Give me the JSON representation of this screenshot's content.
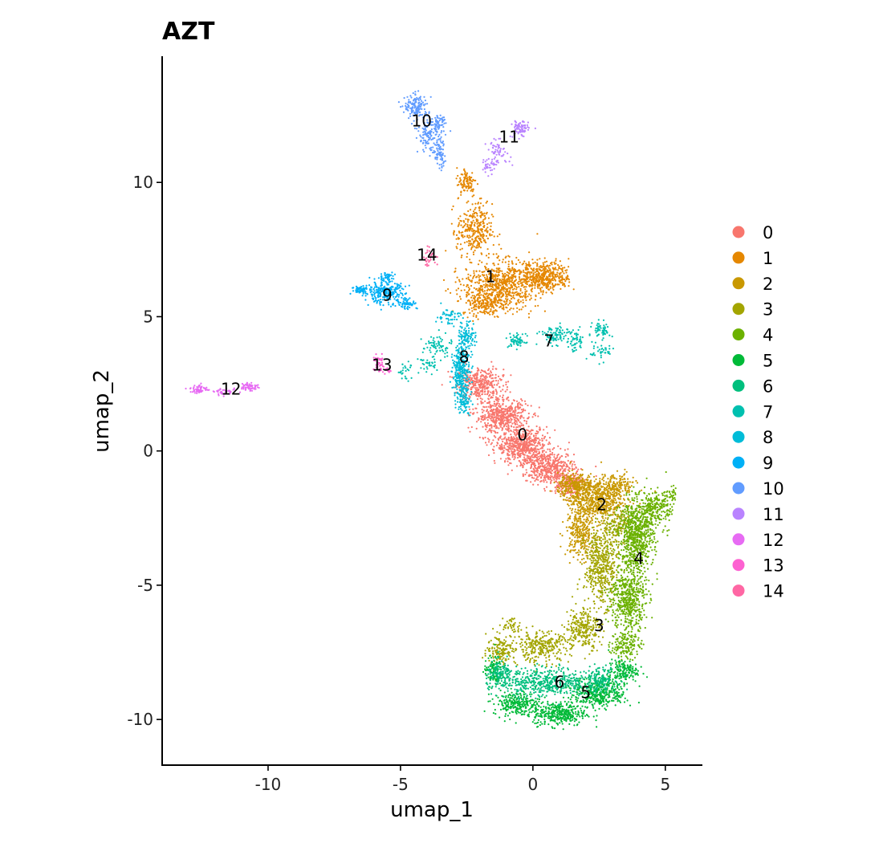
{
  "chart_data": {
    "type": "scatter",
    "title": "AZT",
    "xlabel": "umap_1",
    "ylabel": "umap_2",
    "xlim": [
      -14,
      6.4
    ],
    "ylim": [
      -11.7,
      14.7
    ],
    "x_ticks": [
      -10,
      -5,
      0,
      5
    ],
    "y_ticks": [
      -10,
      -5,
      0,
      5,
      10
    ],
    "x_tick_labels": [
      "-10",
      "-5",
      "0",
      "5"
    ],
    "y_tick_labels": [
      "-10",
      "-5",
      "0",
      "5",
      "10"
    ],
    "grid": false,
    "legend_position": "right",
    "series": [
      {
        "name": "0",
        "color": "#F8766D",
        "label_x": -0.4,
        "label_y": 0.6
      },
      {
        "name": "1",
        "color": "#E58700",
        "label_x": -1.6,
        "label_y": 6.5
      },
      {
        "name": "2",
        "color": "#C99800",
        "label_x": 2.6,
        "label_y": -2.0
      },
      {
        "name": "3",
        "color": "#A3A500",
        "label_x": 2.5,
        "label_y": -6.5
      },
      {
        "name": "4",
        "color": "#6BB100",
        "label_x": 4.0,
        "label_y": -4.0
      },
      {
        "name": "5",
        "color": "#00BA38",
        "label_x": 2.0,
        "label_y": -9.0
      },
      {
        "name": "6",
        "color": "#00BF7D",
        "label_x": 1.0,
        "label_y": -8.6
      },
      {
        "name": "7",
        "color": "#00C0AF",
        "label_x": 0.6,
        "label_y": 4.1
      },
      {
        "name": "8",
        "color": "#00BCD8",
        "label_x": -2.6,
        "label_y": 3.5
      },
      {
        "name": "9",
        "color": "#00B0F6",
        "label_x": -5.5,
        "label_y": 5.8
      },
      {
        "name": "10",
        "color": "#619CFF",
        "label_x": -4.2,
        "label_y": 12.3
      },
      {
        "name": "11",
        "color": "#B983FF",
        "label_x": -0.9,
        "label_y": 11.7
      },
      {
        "name": "12",
        "color": "#E76BF3",
        "label_x": -11.4,
        "label_y": 2.3
      },
      {
        "name": "13",
        "color": "#FD61D1",
        "label_x": -5.7,
        "label_y": 3.2
      },
      {
        "name": "14",
        "color": "#FF67A4",
        "label_x": -4.0,
        "label_y": 7.3
      }
    ],
    "clusters": [
      {
        "label": "0",
        "points": [
          [
            -2.0,
            2.5,
            0.8,
            0.5,
            350
          ],
          [
            -1.2,
            1.3,
            0.9,
            0.6,
            500
          ],
          [
            -0.4,
            0.2,
            0.9,
            0.6,
            550
          ],
          [
            0.6,
            -0.6,
            0.9,
            0.5,
            450
          ],
          [
            1.3,
            -1.2,
            0.6,
            0.4,
            180
          ]
        ]
      },
      {
        "label": "1",
        "points": [
          [
            -1.2,
            6.2,
            1.3,
            0.8,
            700
          ],
          [
            0.5,
            6.5,
            0.8,
            0.5,
            400
          ],
          [
            -2.2,
            8.2,
            0.6,
            0.9,
            300
          ],
          [
            -2.5,
            10.0,
            0.35,
            0.5,
            100
          ],
          [
            -1.8,
            5.5,
            0.8,
            0.4,
            200
          ]
        ]
      },
      {
        "label": "2",
        "points": [
          [
            2.4,
            -1.8,
            0.9,
            0.7,
            600
          ],
          [
            1.6,
            -1.3,
            0.6,
            0.4,
            250
          ],
          [
            1.8,
            -3.0,
            0.5,
            0.9,
            300
          ],
          [
            3.2,
            -1.3,
            0.6,
            0.4,
            150
          ]
        ]
      },
      {
        "label": "3",
        "points": [
          [
            2.6,
            -4.3,
            0.6,
            1.3,
            500
          ],
          [
            1.9,
            -6.6,
            0.6,
            0.7,
            250
          ],
          [
            0.3,
            -7.3,
            1.0,
            0.5,
            300
          ],
          [
            -1.2,
            -7.4,
            0.5,
            0.5,
            150
          ],
          [
            -0.8,
            -6.5,
            0.3,
            0.3,
            40
          ],
          [
            3.2,
            -2.8,
            0.5,
            0.6,
            150
          ]
        ]
      },
      {
        "label": "4",
        "points": [
          [
            3.9,
            -3.2,
            0.6,
            1.2,
            700
          ],
          [
            3.6,
            -5.5,
            0.6,
            1.1,
            500
          ],
          [
            4.5,
            -2.2,
            0.5,
            0.6,
            200
          ],
          [
            5.0,
            -2.0,
            0.25,
            0.5,
            60
          ],
          [
            5.3,
            -1.6,
            0.1,
            0.3,
            20
          ],
          [
            3.5,
            -7.2,
            0.5,
            0.5,
            150
          ]
        ]
      },
      {
        "label": "5",
        "points": [
          [
            2.5,
            -9.0,
            0.9,
            0.5,
            400
          ],
          [
            1.0,
            -9.8,
            0.9,
            0.4,
            350
          ],
          [
            -0.6,
            -9.4,
            0.8,
            0.4,
            250
          ],
          [
            3.4,
            -8.2,
            0.5,
            0.4,
            150
          ],
          [
            -1.5,
            -8.2,
            0.3,
            0.5,
            100
          ]
        ]
      },
      {
        "label": "6",
        "points": [
          [
            0.5,
            -8.6,
            1.4,
            0.5,
            450
          ],
          [
            -1.2,
            -8.4,
            0.5,
            0.5,
            150
          ],
          [
            2.5,
            -8.5,
            0.6,
            0.4,
            150
          ]
        ]
      },
      {
        "label": "7",
        "points": [
          [
            -0.6,
            4.1,
            0.3,
            0.25,
            60
          ],
          [
            0.8,
            4.3,
            0.5,
            0.3,
            100
          ],
          [
            1.6,
            4.1,
            0.3,
            0.4,
            60
          ],
          [
            2.6,
            4.5,
            0.3,
            0.3,
            60
          ],
          [
            2.6,
            3.7,
            0.4,
            0.3,
            40
          ],
          [
            -3.6,
            3.9,
            0.5,
            0.4,
            70
          ],
          [
            -4.0,
            3.2,
            0.3,
            0.3,
            35
          ],
          [
            -4.8,
            3.0,
            0.3,
            0.3,
            25
          ]
        ]
      },
      {
        "label": "8",
        "points": [
          [
            -2.7,
            2.9,
            0.3,
            0.9,
            300
          ],
          [
            -2.5,
            4.3,
            0.3,
            0.5,
            100
          ],
          [
            -2.6,
            1.8,
            0.25,
            0.4,
            60
          ],
          [
            -3.2,
            5.0,
            0.4,
            0.3,
            50
          ]
        ]
      },
      {
        "label": "9",
        "points": [
          [
            -5.6,
            5.9,
            0.7,
            0.35,
            250
          ],
          [
            -6.5,
            6.0,
            0.3,
            0.15,
            60
          ],
          [
            -4.8,
            5.5,
            0.4,
            0.2,
            60
          ],
          [
            -5.5,
            6.5,
            0.25,
            0.15,
            40
          ]
        ]
      },
      {
        "label": "10",
        "points": [
          [
            -4.4,
            12.8,
            0.4,
            0.4,
            150
          ],
          [
            -3.9,
            11.8,
            0.4,
            0.6,
            150
          ],
          [
            -3.5,
            11.0,
            0.2,
            0.5,
            70
          ],
          [
            -3.5,
            12.2,
            0.25,
            0.3,
            40
          ]
        ]
      },
      {
        "label": "11",
        "points": [
          [
            -0.5,
            12.0,
            0.3,
            0.3,
            80
          ],
          [
            -1.3,
            11.1,
            0.4,
            0.4,
            60
          ],
          [
            -1.7,
            10.6,
            0.2,
            0.3,
            30
          ]
        ]
      },
      {
        "label": "12",
        "points": [
          [
            -12.6,
            2.3,
            0.3,
            0.15,
            60
          ],
          [
            -10.7,
            2.4,
            0.3,
            0.15,
            60
          ],
          [
            -11.6,
            2.2,
            0.4,
            0.1,
            40
          ]
        ]
      },
      {
        "label": "13",
        "points": [
          [
            -5.8,
            3.2,
            0.2,
            0.3,
            40
          ],
          [
            -5.5,
            3.0,
            0.2,
            0.1,
            15
          ]
        ]
      },
      {
        "label": "14",
        "points": [
          [
            -3.9,
            7.2,
            0.3,
            0.3,
            30
          ]
        ]
      }
    ]
  }
}
